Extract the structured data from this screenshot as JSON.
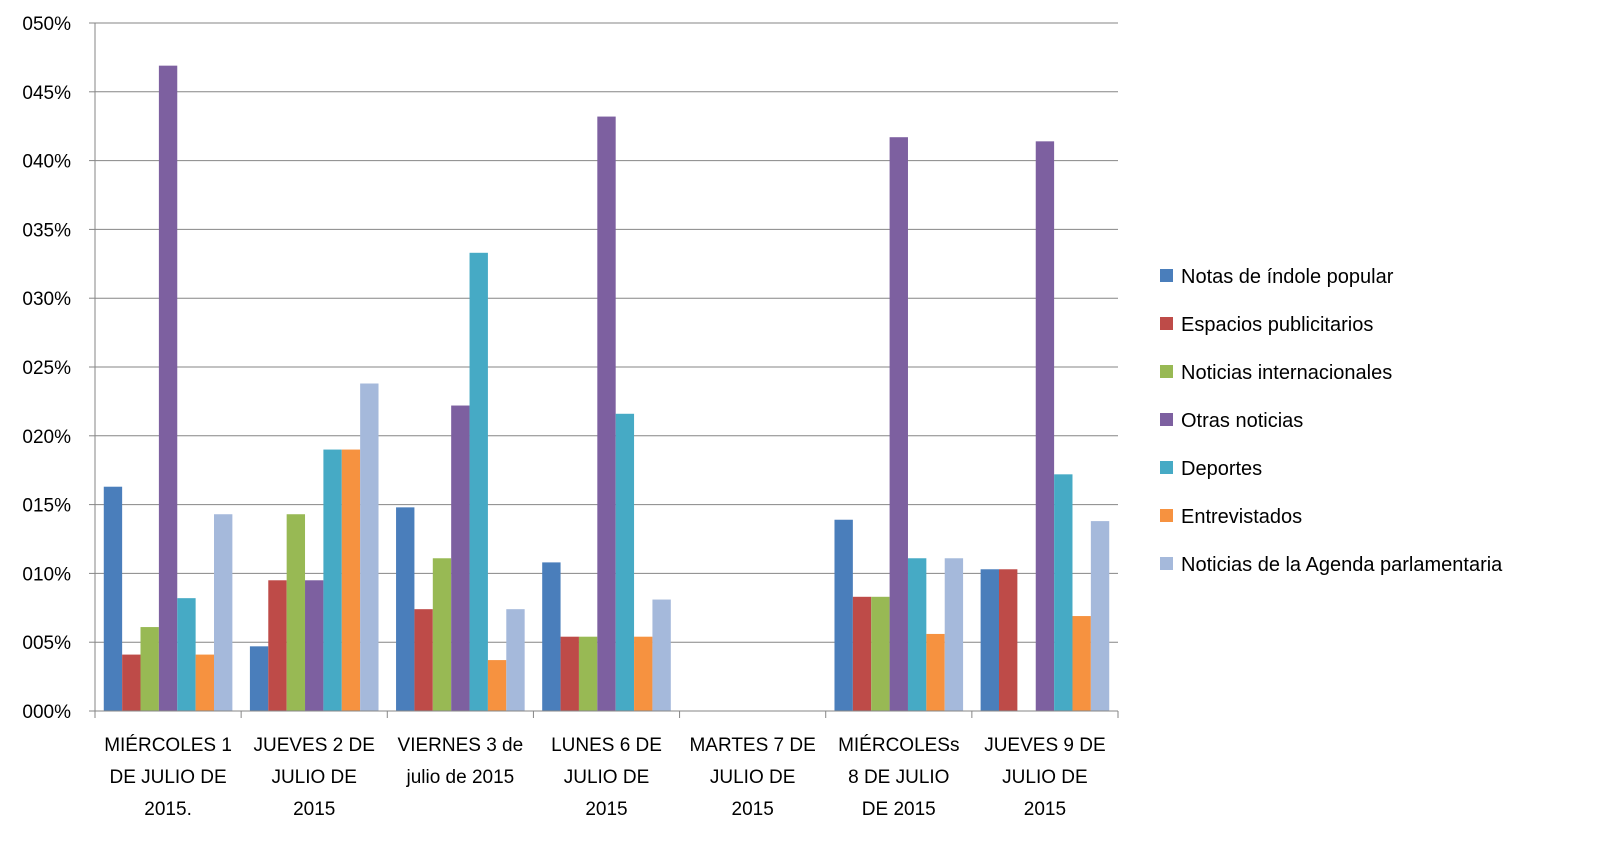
{
  "chart_data": {
    "type": "bar",
    "title": "",
    "xlabel": "",
    "ylabel": "",
    "ylim": [
      0,
      0.05
    ],
    "y_ticks": [
      "000%",
      "005%",
      "010%",
      "015%",
      "020%",
      "025%",
      "030%",
      "035%",
      "040%",
      "045%",
      "050%"
    ],
    "grid": true,
    "legend_position": "right",
    "categories": [
      [
        "MIÉRCOLES 1",
        "DE JULIO DE",
        "2015."
      ],
      [
        "JUEVES 2 DE",
        "JULIO DE",
        "2015"
      ],
      [
        "VIERNES 3 de",
        "julio de 2015"
      ],
      [
        "LUNES 6 DE",
        "JULIO DE",
        "2015"
      ],
      [
        "MARTES 7 DE",
        "JULIO DE",
        "2015"
      ],
      [
        "MIÉRCOLESs",
        "8 DE JULIO",
        "DE 2015"
      ],
      [
        "JUEVES 9 DE",
        "JULIO DE",
        "2015"
      ]
    ],
    "series": [
      {
        "name": "Notas de índole popular",
        "color": "#4a7ebb",
        "values": [
          0.0163,
          0.0047,
          0.0148,
          0.0108,
          null,
          0.0139,
          0.0103
        ]
      },
      {
        "name": "Espacios publicitarios",
        "color": "#be4b48",
        "values": [
          0.0041,
          0.0095,
          0.0074,
          0.0054,
          null,
          0.0083,
          0.0103
        ]
      },
      {
        "name": "Noticias internacionales",
        "color": "#98b954",
        "values": [
          0.0061,
          0.0143,
          0.0111,
          0.0054,
          null,
          0.0083,
          null
        ]
      },
      {
        "name": "Otras noticias",
        "color": "#7d60a0",
        "values": [
          0.0469,
          0.0095,
          0.0222,
          0.0432,
          null,
          0.0417,
          0.0414
        ]
      },
      {
        "name": "Deportes",
        "color": "#46aac5",
        "values": [
          0.0082,
          0.019,
          0.0333,
          0.0216,
          null,
          0.0111,
          0.0172
        ]
      },
      {
        "name": "Entrevistados",
        "color": "#f69240",
        "values": [
          0.0041,
          0.019,
          0.0037,
          0.0054,
          null,
          0.0056,
          0.0069
        ]
      },
      {
        "name": "Noticias de la Agenda parlamentaria",
        "color": "#a5b9db",
        "values": [
          0.0143,
          0.0238,
          0.0074,
          0.0081,
          null,
          0.0111,
          0.0138
        ]
      }
    ]
  }
}
